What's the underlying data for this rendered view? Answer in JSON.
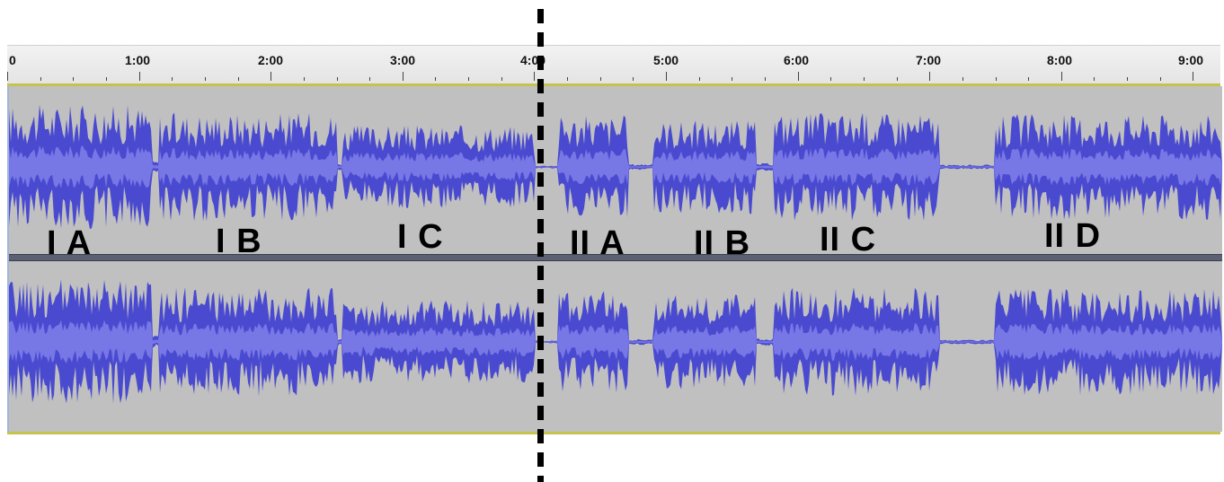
{
  "ruler": {
    "labels": [
      "0",
      "1:00",
      "2:00",
      "3:00",
      "4:00",
      "5:00",
      "6:00",
      "7:00",
      "8:00",
      "9:00"
    ]
  },
  "sections": [
    "I A",
    "I B",
    "I C",
    "II A",
    "II B",
    "II C",
    "II D"
  ],
  "colors": {
    "waveform": "#4a4ad0",
    "waveform_rms": "#7777e6",
    "track_background": "#c0c0c0",
    "marker": "#000000"
  }
}
